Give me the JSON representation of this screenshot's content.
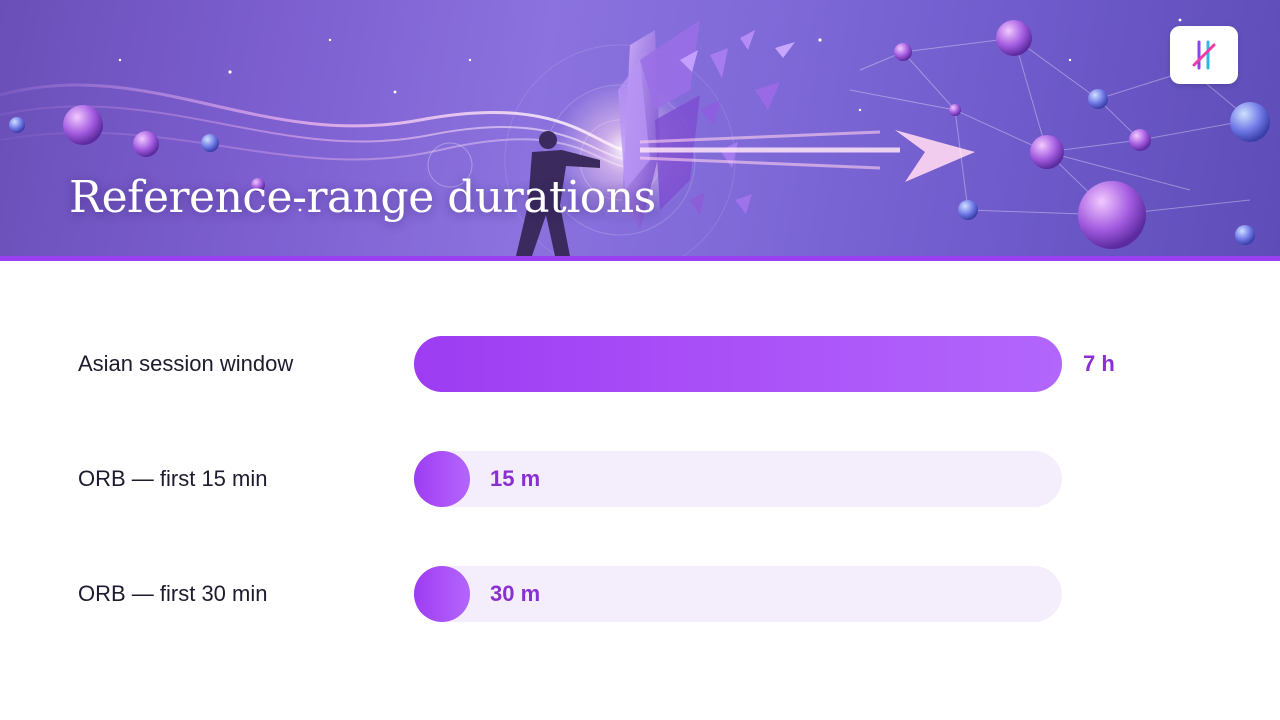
{
  "slide": {
    "title": "Reference-range durations"
  },
  "logo": {
    "icon": "brand-logo-icon"
  },
  "colors": {
    "accent": "#9b3df0",
    "bar_fill": "#a94ff8",
    "bar_track": "#f4eefc",
    "value_text": "#8a2fd1",
    "label_text": "#1f1a2e"
  },
  "chart_data": {
    "type": "bar",
    "orientation": "horizontal",
    "categories": [
      "Asian session window",
      "ORB — first 15 min",
      "ORB — first 30 min"
    ],
    "values_minutes": [
      420,
      15,
      30
    ],
    "value_labels": [
      "7 h",
      "15 m",
      "30 m"
    ],
    "xlim": [
      0,
      420
    ],
    "grid": false,
    "legend": "none"
  }
}
